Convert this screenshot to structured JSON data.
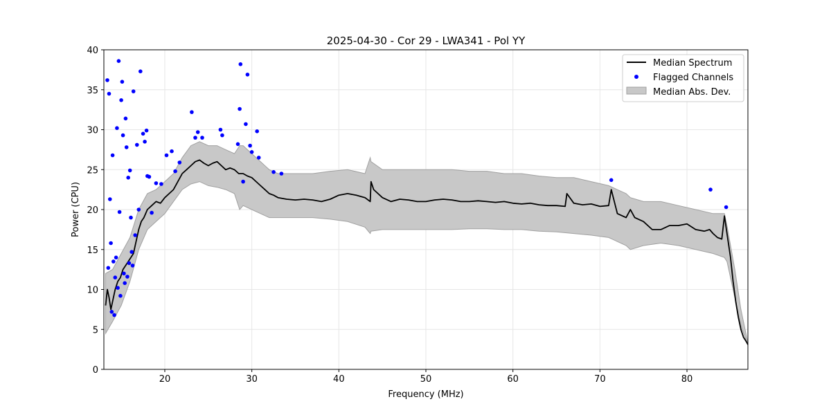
{
  "chart_data": {
    "type": "line",
    "title": "2025-04-30 - Cor 29 - LWA341 - Pol YY",
    "xlabel": "Frequency (MHz)",
    "ylabel": "Power (CPU)",
    "xlim": [
      13,
      87
    ],
    "ylim": [
      0,
      40
    ],
    "xticks": [
      20,
      30,
      40,
      50,
      60,
      70,
      80
    ],
    "yticks": [
      0,
      5,
      10,
      15,
      20,
      25,
      30,
      35,
      40
    ],
    "grid": true,
    "legend": {
      "location": "upper right",
      "entries": [
        "Median Spectrum",
        "Flagged Channels",
        "Median Abs. Dev."
      ]
    },
    "colors": {
      "median": "#000000",
      "flagged": "#0000ff",
      "mad_fill": "#c8c8c8",
      "mad_edge": "#a0a0a0"
    },
    "series": [
      {
        "name": "Median Spectrum",
        "x": [
          13.2,
          13.4,
          13.6,
          13.8,
          14.0,
          14.3,
          14.6,
          14.9,
          15.2,
          15.5,
          15.8,
          16.1,
          16.4,
          16.7,
          17.0,
          17.3,
          17.6,
          18.0,
          18.5,
          19.0,
          19.5,
          20.0,
          20.5,
          21.0,
          21.5,
          22.0,
          22.5,
          23.0,
          23.5,
          24.0,
          24.5,
          25.0,
          25.5,
          26.0,
          26.5,
          27.0,
          27.5,
          28.0,
          28.5,
          29.0,
          29.5,
          30.0,
          30.5,
          31.0,
          31.5,
          32.0,
          32.5,
          33.0,
          34.0,
          35.0,
          36.0,
          37.0,
          38.0,
          39.0,
          40.0,
          41.0,
          42.0,
          43.0,
          43.6,
          43.7,
          44.0,
          45.0,
          46.0,
          47.0,
          48.0,
          49.0,
          50.0,
          51.0,
          52.0,
          53.0,
          54.0,
          55.0,
          56.0,
          57.0,
          58.0,
          59.0,
          60.0,
          61.0,
          62.0,
          63.0,
          64.0,
          65.0,
          66.0,
          66.2,
          67.0,
          68.0,
          69.0,
          70.0,
          71.0,
          71.3,
          72.0,
          73.0,
          73.5,
          74.0,
          75.0,
          76.0,
          77.0,
          78.0,
          79.0,
          80.0,
          81.0,
          82.0,
          82.6,
          83.0,
          83.5,
          84.0,
          84.3,
          84.6,
          85.0,
          85.3,
          85.6,
          85.9,
          86.2,
          86.5,
          86.8,
          87.0
        ],
        "y": [
          8.0,
          10.0,
          9.0,
          7.5,
          8.5,
          10.0,
          11.0,
          11.5,
          12.5,
          13.0,
          13.5,
          14.0,
          14.5,
          16.0,
          17.5,
          18.5,
          19.0,
          20.0,
          20.5,
          21.0,
          20.8,
          21.5,
          22.0,
          22.5,
          23.5,
          24.5,
          25.0,
          25.5,
          26.0,
          26.2,
          25.8,
          25.5,
          25.8,
          26.0,
          25.5,
          25.0,
          25.2,
          25.0,
          24.5,
          24.5,
          24.2,
          24.0,
          23.5,
          23.0,
          22.5,
          22.0,
          21.8,
          21.5,
          21.3,
          21.2,
          21.3,
          21.2,
          21.0,
          21.3,
          21.8,
          22.0,
          21.8,
          21.5,
          21.0,
          23.5,
          22.5,
          21.5,
          21.0,
          21.3,
          21.2,
          21.0,
          21.0,
          21.2,
          21.3,
          21.2,
          21.0,
          21.0,
          21.1,
          21.0,
          20.9,
          21.0,
          20.8,
          20.7,
          20.8,
          20.6,
          20.5,
          20.5,
          20.4,
          22.0,
          20.8,
          20.6,
          20.7,
          20.4,
          20.5,
          22.5,
          19.5,
          19.0,
          20.0,
          19.0,
          18.5,
          17.5,
          17.5,
          18.0,
          18.0,
          18.2,
          17.5,
          17.3,
          17.5,
          17.0,
          16.5,
          16.3,
          19.2,
          17.0,
          14.0,
          11.0,
          8.5,
          6.5,
          5.0,
          4.0,
          3.5,
          3.1
        ]
      },
      {
        "name": "Median Abs. Dev.",
        "type": "area",
        "x": [
          13.2,
          14.0,
          15.0,
          16.0,
          17.0,
          18.0,
          19.0,
          20.0,
          21.0,
          22.0,
          23.0,
          24.0,
          25.0,
          26.0,
          27.0,
          28.0,
          28.6,
          29.0,
          30.0,
          31.0,
          32.0,
          33.0,
          35.0,
          37.0,
          39.0,
          41.0,
          43.0,
          43.6,
          43.7,
          45.0,
          47.0,
          49.0,
          51.0,
          53.0,
          55.0,
          57.0,
          59.0,
          61.0,
          63.0,
          65.0,
          67.0,
          69.0,
          71.0,
          73.0,
          73.5,
          75.0,
          77.0,
          79.0,
          81.0,
          83.0,
          84.3,
          84.6,
          85.5,
          86.2,
          87.0
        ],
        "lower": [
          4.5,
          6.0,
          8.0,
          11.0,
          15.0,
          17.5,
          18.5,
          19.5,
          21.0,
          22.5,
          23.2,
          23.5,
          23.0,
          22.8,
          22.5,
          22.0,
          20.0,
          20.5,
          20.0,
          19.5,
          19.0,
          19.0,
          19.0,
          19.0,
          18.8,
          18.5,
          17.8,
          17.0,
          17.3,
          17.5,
          17.5,
          17.5,
          17.5,
          17.5,
          17.6,
          17.6,
          17.5,
          17.5,
          17.3,
          17.2,
          17.0,
          16.8,
          16.5,
          15.5,
          15.0,
          15.5,
          15.8,
          15.5,
          15.0,
          14.5,
          14.0,
          13.5,
          9.0,
          5.5,
          3.0
        ],
        "upper": [
          12.0,
          12.5,
          14.5,
          16.5,
          20.0,
          22.0,
          22.5,
          23.5,
          24.5,
          26.5,
          28.0,
          28.5,
          28.0,
          28.0,
          27.5,
          27.0,
          28.0,
          28.0,
          27.0,
          26.0,
          25.0,
          24.5,
          24.5,
          24.5,
          24.8,
          25.0,
          24.5,
          26.5,
          26.0,
          25.0,
          25.0,
          25.0,
          25.0,
          25.0,
          24.8,
          24.8,
          24.5,
          24.5,
          24.2,
          24.0,
          24.0,
          23.5,
          23.0,
          22.0,
          21.5,
          21.0,
          21.0,
          20.5,
          20.0,
          19.5,
          19.5,
          18.0,
          12.5,
          7.5,
          3.3
        ]
      },
      {
        "name": "Flagged Channels",
        "type": "scatter",
        "x": [
          13.4,
          13.5,
          13.6,
          13.7,
          13.8,
          13.9,
          14.0,
          14.1,
          14.2,
          14.3,
          14.4,
          14.5,
          14.6,
          14.7,
          14.8,
          14.9,
          15.0,
          15.1,
          15.2,
          15.3,
          15.4,
          15.5,
          15.6,
          15.7,
          15.8,
          15.9,
          16.0,
          16.1,
          16.2,
          16.3,
          16.4,
          16.6,
          16.8,
          17.0,
          17.2,
          17.5,
          17.7,
          17.9,
          18.0,
          18.2,
          18.5,
          19.0,
          19.6,
          20.2,
          20.8,
          21.2,
          21.7,
          23.1,
          23.5,
          23.8,
          24.3,
          26.4,
          26.6,
          28.4,
          28.6,
          28.7,
          29.0,
          29.3,
          29.5,
          29.8,
          30.0,
          30.6,
          30.8,
          32.5,
          33.4,
          71.3,
          82.7,
          84.5
        ],
        "y": [
          36.2,
          12.7,
          34.5,
          21.3,
          15.8,
          7.2,
          26.8,
          13.5,
          6.8,
          11.5,
          14.0,
          30.2,
          10.2,
          38.6,
          19.7,
          9.2,
          33.7,
          36.0,
          29.3,
          12.0,
          10.8,
          31.4,
          27.8,
          11.6,
          24.0,
          13.3,
          24.9,
          19.0,
          14.7,
          13.0,
          34.8,
          16.8,
          28.1,
          20.0,
          37.3,
          29.5,
          28.5,
          29.9,
          24.2,
          24.1,
          19.6,
          23.3,
          23.2,
          26.8,
          27.3,
          24.8,
          25.9,
          32.2,
          29.0,
          29.7,
          29.0,
          30.0,
          29.3,
          28.2,
          32.6,
          38.2,
          23.5,
          30.7,
          36.9,
          28.0,
          27.2,
          29.8,
          26.5,
          24.7,
          24.5,
          23.7,
          22.5,
          20.3
        ]
      }
    ]
  }
}
